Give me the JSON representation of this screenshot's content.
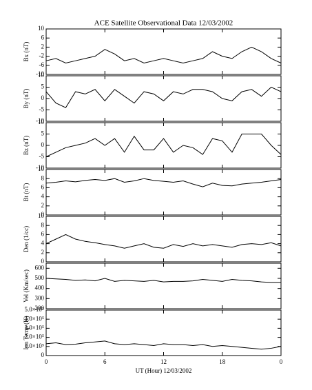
{
  "chart_data": [
    {
      "type": "line",
      "title": "ACE Satellite Observational Data   12/03/2002",
      "ylabel": "Bx (nT)",
      "color": "#000000",
      "x": [
        0,
        1,
        2,
        3,
        4,
        5,
        6,
        7,
        8,
        9,
        10,
        11,
        12,
        13,
        14,
        15,
        16,
        17,
        18,
        19,
        20,
        21,
        22,
        23,
        24
      ],
      "values": [
        -4,
        -3,
        -5,
        -4,
        -3,
        -2,
        1,
        -1,
        -4,
        -3,
        -5,
        -4,
        -3,
        -4,
        -5,
        -4,
        -3,
        0,
        -2,
        -3,
        0,
        2,
        0,
        -3,
        -5
      ],
      "xlim": [
        0,
        24
      ],
      "ylim": [
        -10,
        10
      ],
      "yticks": [
        -10,
        -6,
        -2,
        2,
        6,
        10
      ]
    },
    {
      "type": "line",
      "ylabel": "By (nT)",
      "color": "#000000",
      "x": [
        0,
        1,
        2,
        3,
        4,
        5,
        6,
        7,
        8,
        9,
        10,
        11,
        12,
        13,
        14,
        15,
        16,
        17,
        18,
        19,
        20,
        21,
        22,
        23,
        24
      ],
      "values": [
        3,
        -2,
        -4,
        3,
        2,
        4,
        -1,
        4,
        1,
        -2,
        3,
        2,
        -1,
        3,
        2,
        4,
        4,
        3,
        0,
        -1,
        3,
        4,
        1,
        5,
        3
      ],
      "xlim": [
        0,
        24
      ],
      "ylim": [
        -10,
        10
      ],
      "yticks": [
        -10,
        -5,
        0,
        5,
        10
      ]
    },
    {
      "type": "line",
      "ylabel": "Bz (nT)",
      "color": "#000000",
      "x": [
        0,
        1,
        2,
        3,
        4,
        5,
        6,
        7,
        8,
        9,
        10,
        11,
        12,
        13,
        14,
        15,
        16,
        17,
        18,
        19,
        20,
        21,
        22,
        23,
        24
      ],
      "values": [
        -5,
        -3,
        -1,
        0,
        1,
        3,
        0,
        3,
        -3,
        4,
        -2,
        -2,
        3,
        -3,
        0,
        -1,
        -4,
        3,
        2,
        -3,
        5,
        5,
        5,
        0,
        -4
      ],
      "xlim": [
        0,
        24
      ],
      "ylim": [
        -10,
        10
      ],
      "yticks": [
        -10,
        -5,
        0,
        5,
        10
      ]
    },
    {
      "type": "line",
      "ylabel": "Bt (nT)",
      "color": "#000000",
      "x": [
        0,
        1,
        2,
        3,
        4,
        5,
        6,
        7,
        8,
        9,
        10,
        11,
        12,
        13,
        14,
        15,
        16,
        17,
        18,
        19,
        20,
        21,
        22,
        23,
        24
      ],
      "values": [
        7,
        7.2,
        7.5,
        7.3,
        7.6,
        7.8,
        7.6,
        8,
        7.2,
        7.5,
        8,
        7.6,
        7.4,
        7.2,
        7.5,
        6.8,
        6.2,
        7,
        6.5,
        6.4,
        6.8,
        7,
        7.2,
        7.5,
        7.8
      ],
      "xlim": [
        0,
        24
      ],
      "ylim": [
        0,
        10
      ],
      "yticks": [
        0,
        2,
        4,
        6,
        8,
        10
      ]
    },
    {
      "type": "line",
      "ylabel": "Den (1/cc)",
      "color": "#000000",
      "x": [
        0,
        1,
        2,
        3,
        4,
        5,
        6,
        7,
        8,
        9,
        10,
        11,
        12,
        13,
        14,
        15,
        16,
        17,
        18,
        19,
        20,
        21,
        22,
        23,
        24
      ],
      "values": [
        4,
        5,
        6,
        5,
        4.5,
        4.2,
        3.8,
        3.5,
        3,
        3.5,
        4,
        3.2,
        3,
        3.8,
        3.4,
        4,
        3.5,
        3.8,
        3.5,
        3.2,
        3.8,
        4,
        3.8,
        4.2,
        3.5
      ],
      "xlim": [
        0,
        24
      ],
      "ylim": [
        0,
        10
      ],
      "yticks": [
        0,
        2,
        4,
        6,
        8,
        10
      ]
    },
    {
      "type": "line",
      "ylabel": "Vel (Km/sec)",
      "color": "#000000",
      "x": [
        0,
        1,
        2,
        3,
        4,
        5,
        6,
        7,
        8,
        9,
        10,
        11,
        12,
        13,
        14,
        15,
        16,
        17,
        18,
        19,
        20,
        21,
        22,
        23,
        24
      ],
      "values": [
        500,
        495,
        490,
        480,
        485,
        475,
        500,
        470,
        480,
        475,
        470,
        480,
        465,
        470,
        470,
        475,
        490,
        480,
        470,
        490,
        480,
        475,
        465,
        460,
        460
      ],
      "xlim": [
        0,
        24
      ],
      "ylim": [
        200,
        650
      ],
      "yticks": [
        200,
        300,
        400,
        500,
        600
      ]
    },
    {
      "type": "line",
      "ylabel": "Ion Temp (K)",
      "xlabel": "UT (Hour)   12/03/2002",
      "color": "#000000",
      "x": [
        0,
        1,
        2,
        3,
        4,
        5,
        6,
        7,
        8,
        9,
        10,
        11,
        12,
        13,
        14,
        15,
        16,
        17,
        18,
        19,
        20,
        21,
        22,
        23,
        24
      ],
      "values": [
        130000,
        140000,
        120000,
        125000,
        140000,
        150000,
        160000,
        130000,
        120000,
        130000,
        120000,
        110000,
        130000,
        120000,
        120000,
        110000,
        120000,
        100000,
        110000,
        100000,
        90000,
        80000,
        70000,
        80000,
        100000
      ],
      "xlim": [
        0,
        24
      ],
      "ylim": [
        0,
        500000
      ],
      "yticks": [
        0,
        {
          "value": 100000,
          "label": "1.0×10⁵"
        },
        {
          "value": 200000,
          "label": "2.0×10⁵"
        },
        {
          "value": 300000,
          "label": "3.0×10⁵"
        },
        {
          "value": 400000,
          "label": "4.0×10⁵"
        },
        {
          "value": 500000,
          "label": "5.0×10⁵"
        }
      ],
      "xticks": [
        0,
        6,
        12,
        18,
        {
          "value": 24,
          "label": "0"
        }
      ]
    }
  ]
}
